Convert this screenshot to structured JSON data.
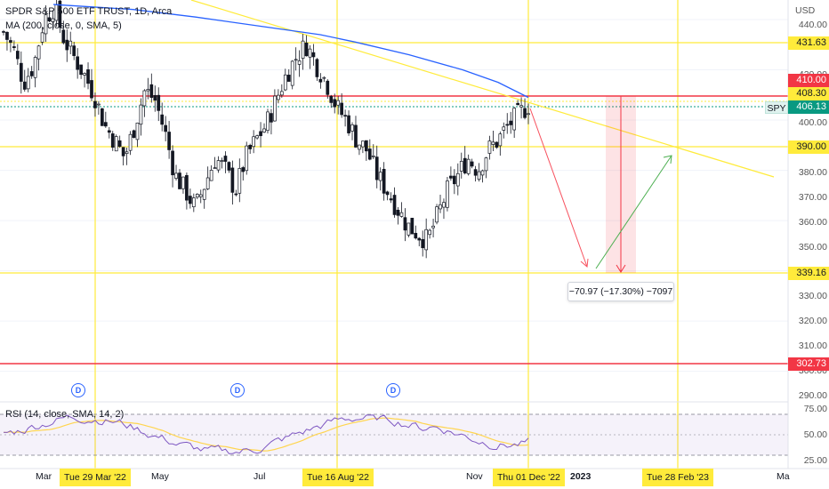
{
  "header": {
    "symbol_title": "SPDR S&P 500 ETF TRUST, 1D, Arca",
    "ma_indicator": "MA (200, close, 0, SMA, 5)",
    "rsi_indicator": "RSI (14, close, SMA, 14, 2)",
    "currency": "USD"
  },
  "price_axis": {
    "ticks": [
      "440.00",
      "420.00",
      "400.00",
      "380.00",
      "370.00",
      "360.00",
      "350.00",
      "330.00",
      "320.00",
      "310.00",
      "300.00",
      "290.00"
    ]
  },
  "price_tags": {
    "level_431": "431.63",
    "level_410": "410.00",
    "level_408": "408.30",
    "last_price": "406.13",
    "level_390": "390.00",
    "level_339": "339.16",
    "level_302": "302.73",
    "symbol_badge": "SPY"
  },
  "rsi_axis": {
    "ticks": [
      "75.00",
      "50.00",
      "25.00"
    ]
  },
  "time_axis": {
    "labels": {
      "mar": "Mar",
      "may": "May",
      "jul": "Jul",
      "nov": "Nov",
      "y2023": "2023",
      "mar2": "Ma"
    },
    "highlighted": {
      "d1": "Tue 29 Mar '22",
      "d2": "Tue 16 Aug '22",
      "d3": "Thu 01 Dec '22",
      "d4": "Tue 28 Feb '23"
    }
  },
  "dividend_marker": "D",
  "measure_label": "−70.97 (−17.30%) −7097",
  "colors": {
    "yellow_line": "#ffeb3b",
    "red_line": "#f23645",
    "up_candle": "#089981",
    "ma_line": "#2962ff",
    "rsi_line": "#7e57c2",
    "rsi_ma": "#ffd54f",
    "bars": "#131722"
  },
  "chart_data": {
    "type": "line",
    "series": [
      {
        "name": "SPY",
        "approximate_close": [
          435,
          428,
          415,
          422,
          440,
          445,
          432,
          425,
          418,
          410,
          398,
          392,
          385,
          398,
          412,
          408,
          395,
          378,
          372,
          365,
          375,
          385,
          380,
          372,
          385,
          392,
          398,
          408,
          418,
          425,
          430,
          422,
          415,
          405,
          400,
          392,
          388,
          378,
          372,
          365,
          358,
          355,
          352,
          362,
          372,
          378,
          385,
          380,
          388,
          392,
          398,
          402,
          406
        ]
      },
      {
        "name": "MA (200)"
      }
    ],
    "ylim": [
      285,
      445
    ],
    "yticks": [
      440,
      420,
      400,
      380,
      370,
      360,
      350,
      330,
      320,
      310,
      300,
      290
    ],
    "horizontal_levels": [
      431.63,
      410.0,
      408.3,
      390.0,
      339.16,
      302.73
    ],
    "projection_measure": {
      "change": -70.97,
      "percent": -17.3,
      "ticks": -7097
    },
    "rsi": {
      "ylim": [
        25,
        75
      ],
      "yticks": [
        75,
        50,
        25
      ]
    }
  }
}
